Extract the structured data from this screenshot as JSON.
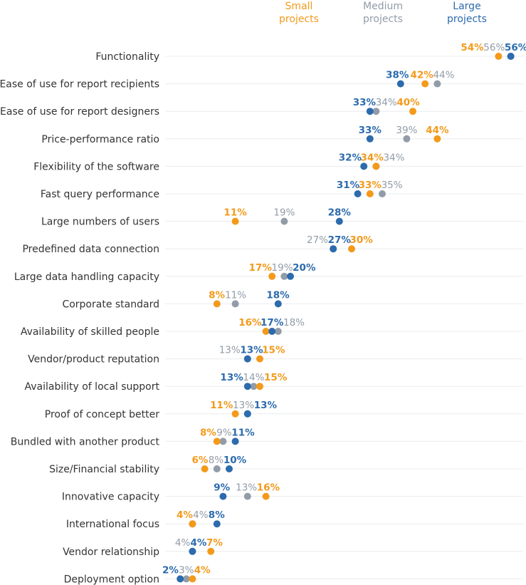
{
  "chart_data": {
    "type": "scatter",
    "title": "",
    "xlabel": "",
    "ylabel": "",
    "grid": true,
    "legend_position": "top",
    "series": [
      {
        "name": "Small projects",
        "legend_line1": "Small",
        "legend_line2": "projects",
        "color": "#F39A1B"
      },
      {
        "name": "Medium projects",
        "legend_line1": "Medium",
        "legend_line2": "projects",
        "color": "#929CA8"
      },
      {
        "name": "Large projects",
        "legend_line1": "Large",
        "legend_line2": "projects",
        "color": "#2C6BAD"
      }
    ],
    "categories": [
      "Functionality",
      "Ease of use for report recipients",
      "Ease of use for report designers",
      "Price-performance ratio",
      "Flexibility of the software",
      "Fast query performance",
      "Large numbers of users",
      "Predefined data connection",
      "Large data handling capacity",
      "Corporate standard",
      "Availability of skilled people",
      "Vendor/product reputation",
      "Availability of local support",
      "Proof of concept better",
      "Bundled with another product",
      "Size/Financial stability",
      "Innovative capacity",
      "International focus",
      "Vendor relationship",
      "Deployment option"
    ],
    "values": {
      "Small projects": [
        54,
        42,
        40,
        44,
        34,
        33,
        11,
        30,
        17,
        8,
        16,
        15,
        15,
        11,
        8,
        6,
        16,
        4,
        7,
        4
      ],
      "Medium projects": [
        56,
        44,
        34,
        39,
        34,
        35,
        19,
        27,
        19,
        11,
        18,
        13,
        14,
        13,
        9,
        8,
        13,
        4,
        4,
        3
      ],
      "Large projects": [
        56,
        38,
        33,
        33,
        32,
        31,
        28,
        27,
        20,
        18,
        17,
        13,
        13,
        13,
        11,
        10,
        9,
        8,
        4,
        2
      ]
    },
    "value_suffix": "%",
    "xlim": [
      0,
      57
    ]
  }
}
